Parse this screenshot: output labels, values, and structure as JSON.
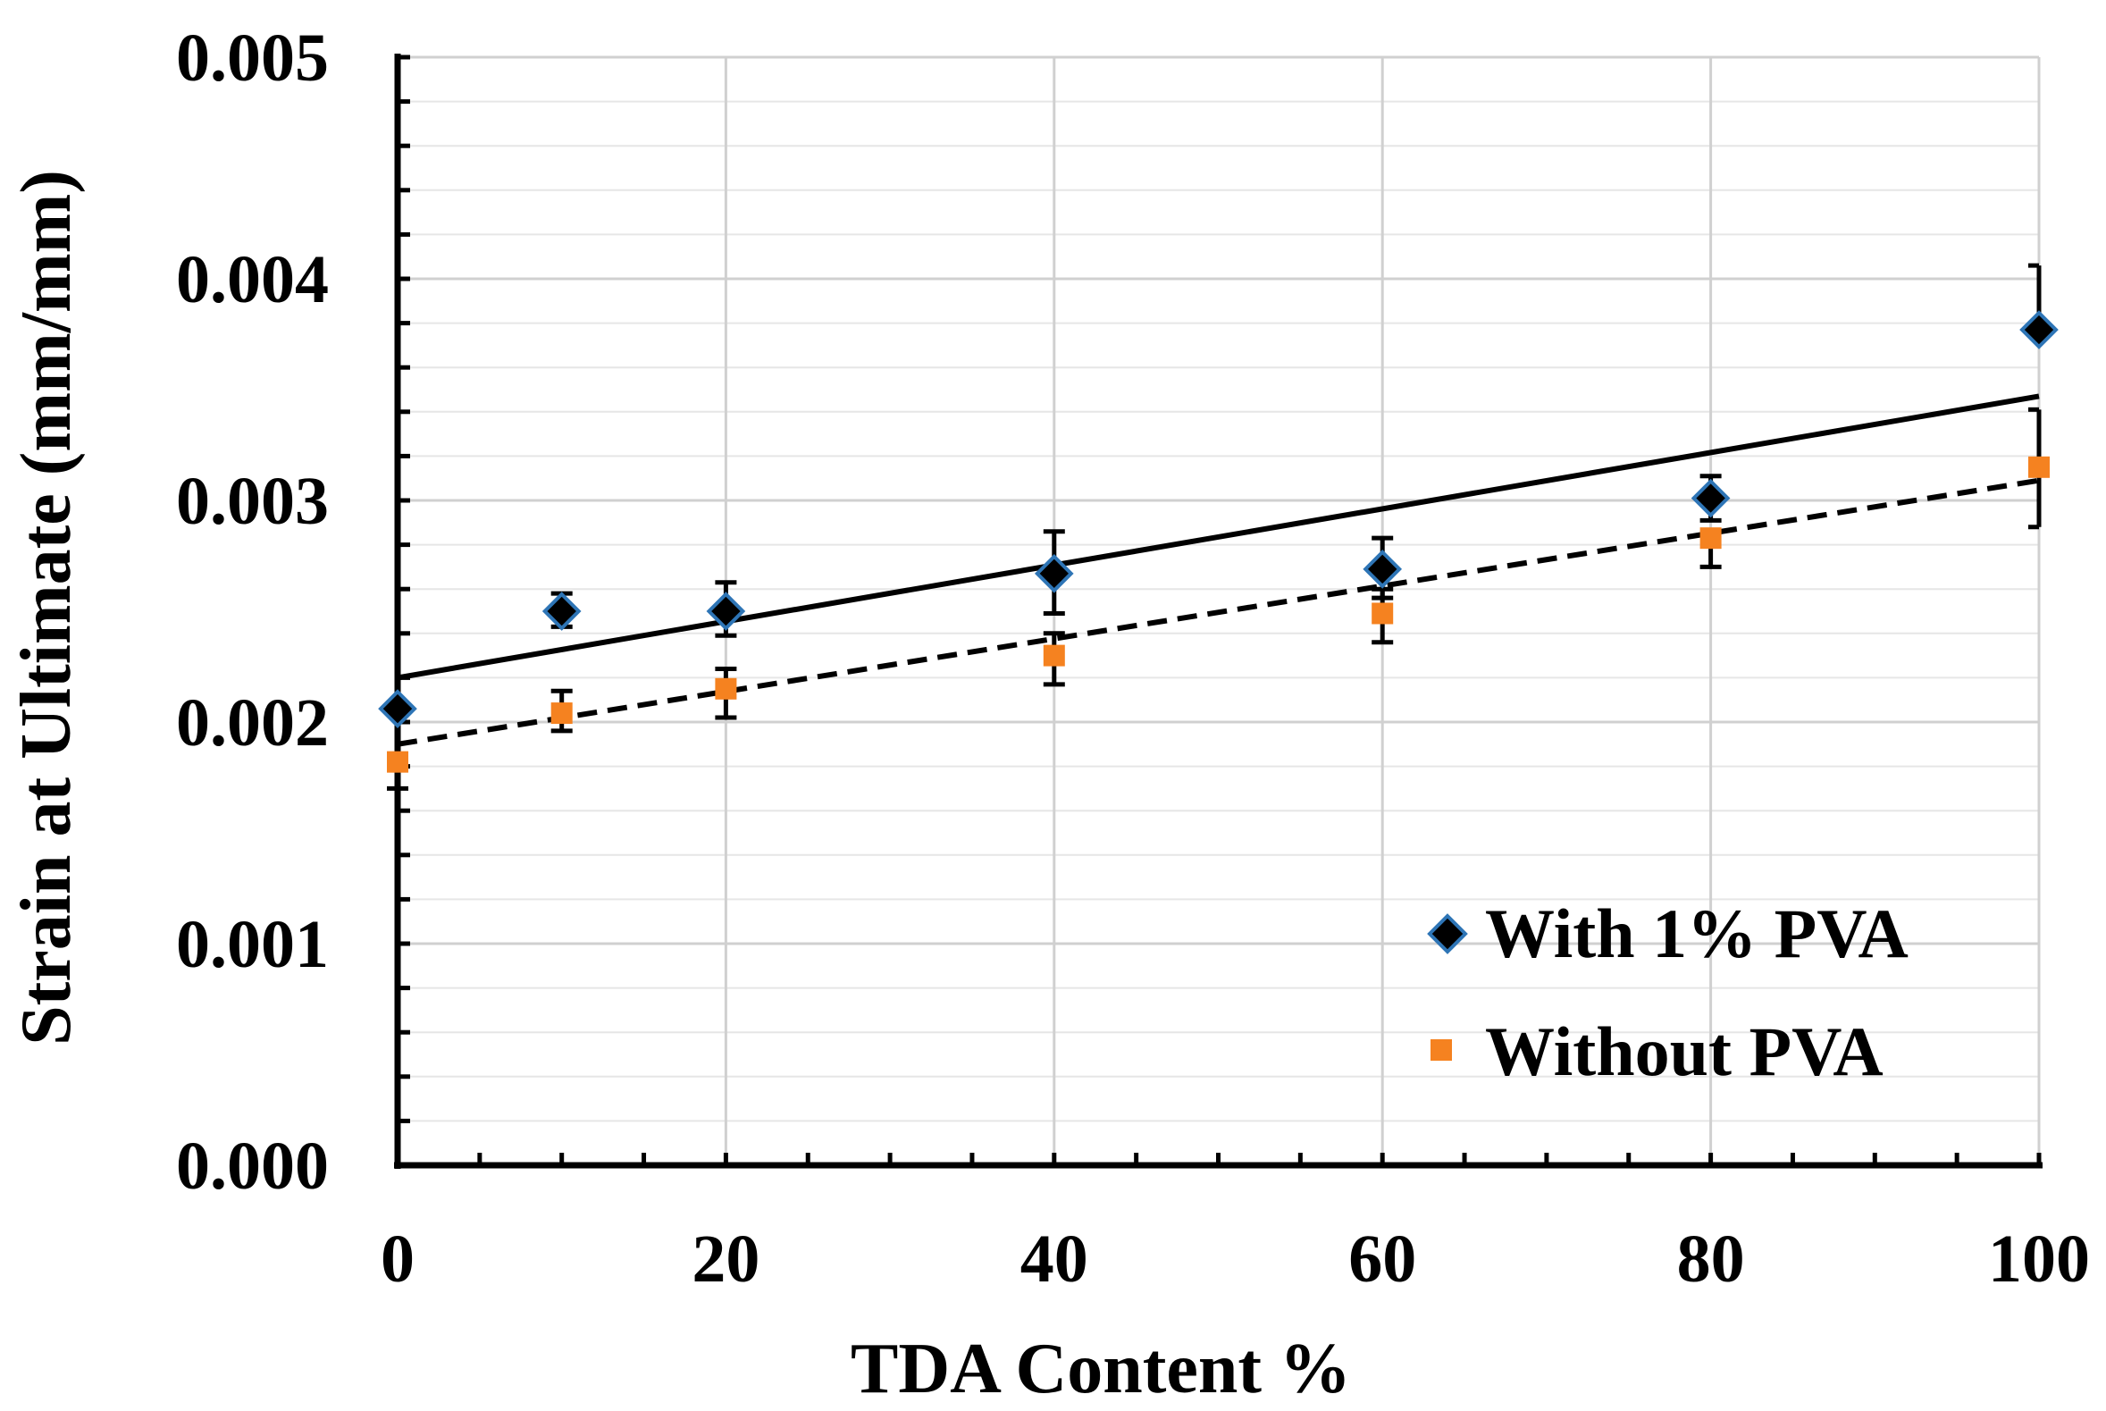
{
  "chart_data": {
    "type": "scatter",
    "title": "",
    "xlabel": "TDA Content %",
    "ylabel": "Strain at Ultimate (mm/mm)",
    "xlim": [
      0,
      100
    ],
    "ylim": [
      0,
      0.005
    ],
    "x_ticks": [
      0,
      20,
      40,
      60,
      80,
      100
    ],
    "x_tick_labels": [
      "0",
      "20",
      "40",
      "60",
      "80",
      "100"
    ],
    "y_ticks": [
      0,
      0.001,
      0.002,
      0.003,
      0.004,
      0.005
    ],
    "y_tick_labels": [
      "0.000",
      "0.001",
      "0.002",
      "0.003",
      "0.004",
      "0.005"
    ],
    "grid": true,
    "legend_position": "bottom-right",
    "series": [
      {
        "name": "With 1% PVA",
        "marker": "diamond",
        "color": "#000000",
        "edge_color": "#2e75b6",
        "x": [
          0,
          10,
          20,
          40,
          60,
          80,
          100
        ],
        "y": [
          0.00206,
          0.0025,
          0.0025,
          0.00267,
          0.00269,
          0.00301,
          0.00377
        ],
        "error_low": [
          0.0,
          7e-05,
          0.00011,
          0.00018,
          0.00013,
          0.0001,
          0.0
        ],
        "error_high": [
          0.0,
          8e-05,
          0.00013,
          0.00019,
          0.00014,
          0.0001,
          0.00029
        ],
        "trendline": {
          "style": "solid",
          "y_at_xmin": 0.0022,
          "y_at_xmax": 0.00347
        }
      },
      {
        "name": "Without PVA",
        "marker": "square",
        "color": "#f58220",
        "x": [
          0,
          10,
          20,
          40,
          60,
          80,
          100
        ],
        "y": [
          0.00182,
          0.00204,
          0.00215,
          0.0023,
          0.00249,
          0.00283,
          0.00315
        ],
        "error_low": [
          0.00012,
          8e-05,
          0.00013,
          0.00013,
          0.00013,
          0.00013,
          0.00027
        ],
        "error_high": [
          0.0,
          0.0001,
          9e-05,
          0.0001,
          0.00011,
          0.0,
          0.00026
        ],
        "trendline": {
          "style": "dashed",
          "y_at_xmin": 0.0019,
          "y_at_xmax": 0.00309
        }
      }
    ]
  }
}
